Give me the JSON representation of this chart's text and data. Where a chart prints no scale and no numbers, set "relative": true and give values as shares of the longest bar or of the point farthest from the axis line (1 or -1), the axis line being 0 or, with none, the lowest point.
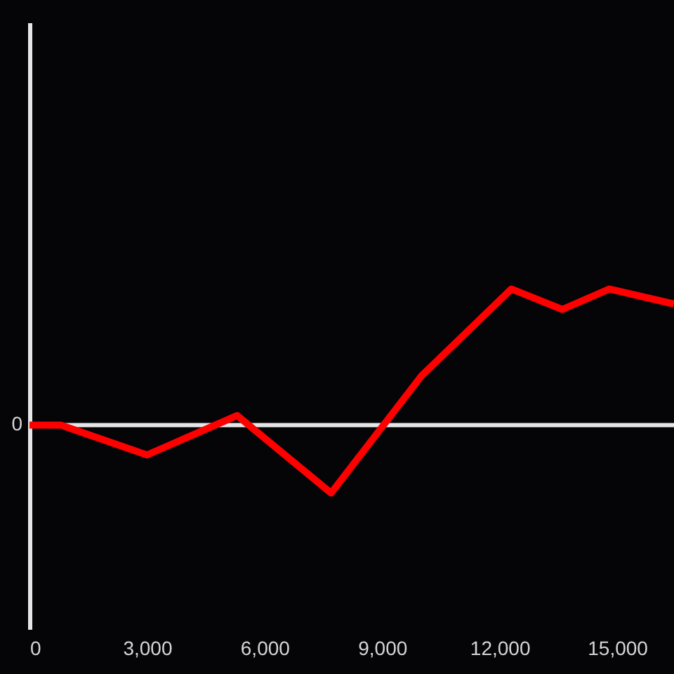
{
  "chart_data": {
    "type": "line",
    "x": [
      0,
      800,
      3000,
      5300,
      7700,
      10000,
      12300,
      13600,
      14800,
      16450
    ],
    "series": [
      {
        "color": "#ff0000",
        "values": [
          0,
          0,
          -0.22,
          0.07,
          -0.5,
          0.36,
          1,
          0.85,
          1,
          0.89
        ]
      }
    ],
    "relative": true,
    "xlim": [
      0,
      16450
    ],
    "xticks": [
      0,
      {
        "value": 3000,
        "label": "3,000"
      },
      {
        "value": 6000,
        "label": "6,000"
      },
      {
        "value": 9000,
        "label": "9,000"
      },
      {
        "value": 12000,
        "label": "12,000"
      },
      {
        "value": 15000,
        "label": "15,000"
      }
    ],
    "ref_lines": [
      {
        "axis": "y",
        "value": 0,
        "label": "0",
        "color": "#e6e6e6"
      }
    ],
    "grid": false,
    "marker": "none",
    "line_style": "solid"
  }
}
